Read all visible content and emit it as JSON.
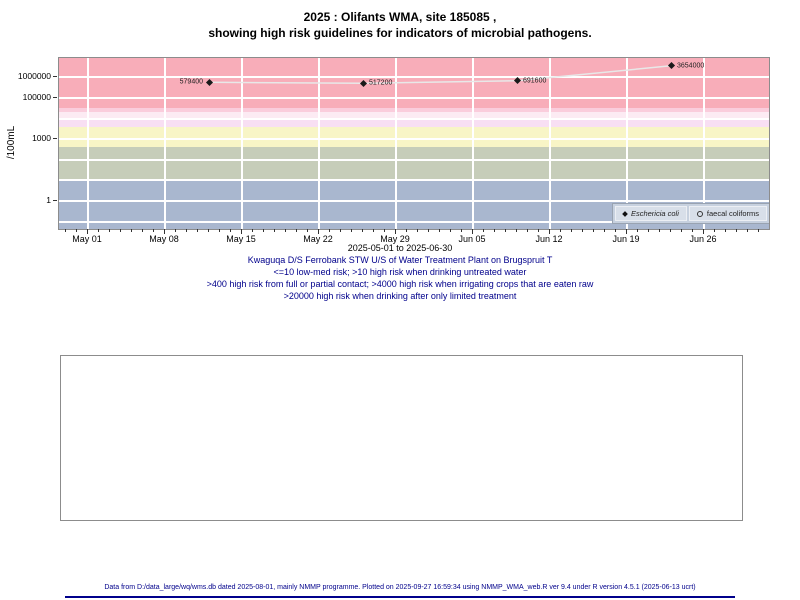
{
  "title": {
    "line1": "2025 : Olifants WMA, site 185085 ,",
    "line2": "showing high risk guidelines for indicators of microbial pathogens."
  },
  "chart_data": {
    "type": "line",
    "y_axis": {
      "label": "/100mL",
      "scale": "log",
      "ticks": [
        {
          "label": "1000000",
          "value": 1000000
        },
        {
          "label": "100000",
          "value": 100000
        },
        {
          "label": "1000",
          "value": 1000
        },
        {
          "label": "1",
          "value": 1
        }
      ]
    },
    "x_axis": {
      "start": "2025-05-01",
      "end": "2025-06-30",
      "ticks": [
        {
          "label": "May 01",
          "date": "2025-05-01"
        },
        {
          "label": "May 08",
          "date": "2025-05-08"
        },
        {
          "label": "May 15",
          "date": "2025-05-15"
        },
        {
          "label": "May 22",
          "date": "2025-05-22"
        },
        {
          "label": "May 29",
          "date": "2025-05-29"
        },
        {
          "label": "Jun 05",
          "date": "2025-06-05"
        },
        {
          "label": "Jun 12",
          "date": "2025-06-12"
        },
        {
          "label": "Jun 19",
          "date": "2025-06-19"
        },
        {
          "label": "Jun 26",
          "date": "2025-06-26"
        }
      ]
    },
    "gridline_decades": [
      0.1,
      1,
      10,
      100,
      1000,
      10000,
      100000,
      1000000
    ],
    "risk_bands": [
      {
        "name": "low-med-risk",
        "color": "#A9B7CF",
        "from": 0.04,
        "to": 10
      },
      {
        "name": "high-risk-drinking-untreated",
        "color": "#C6CDB9",
        "from": 10,
        "to": 400
      },
      {
        "name": "high-risk-contact",
        "color": "#F8F5C6",
        "from": 400,
        "to": 4000
      },
      {
        "name": "high-risk-irrigating",
        "color": "#F8DFF3",
        "from": 4000,
        "to": 10000
      },
      {
        "name": "band-pale-pink",
        "color": "#FCEBF3",
        "from": 10000,
        "to": 20000
      },
      {
        "name": "band-light-pink",
        "color": "#FACDDC",
        "from": 20000,
        "to": 33000
      },
      {
        "name": "high-risk-limited-treatment",
        "color": "#F8ADB9",
        "from": 33000,
        "to": 10800000
      }
    ],
    "series": [
      {
        "name": "Eschericia coli",
        "marker": "filled-diamond",
        "color": "#1a1a1a",
        "line_color": "#e8e8e8",
        "points": [
          {
            "date": "2025-05-12",
            "value": 579400,
            "label": "579400",
            "label_side": "left"
          },
          {
            "date": "2025-05-26",
            "value": 517200,
            "label": "517200",
            "label_side": "right"
          },
          {
            "date": "2025-06-09",
            "value": 691600,
            "label": "691600",
            "label_side": "right"
          },
          {
            "date": "2025-06-23",
            "value": 3654000,
            "label": "3654000",
            "label_side": "right"
          }
        ]
      },
      {
        "name": "faecal coliforms",
        "marker": "open-circle",
        "color": "#444444",
        "points": []
      }
    ]
  },
  "captions": {
    "range": "2025-05-01 to 2025-06-30",
    "site": "Kwaguqa D/S Ferrobank STW U/S of Water Treatment Plant on Brugspruit T",
    "guideline1": "<=10 low-med risk; >10 high risk when drinking untreated water",
    "guideline2": ">400 high risk from full or partial contact; >4000 high risk when irrigating crops that are eaten raw",
    "guideline3": ">20000 high risk when drinking after only limited treatment",
    "color": "#00008B"
  },
  "footer": {
    "text": "Data from D:/data_large/wq/wms.db dated 2025-08-01, mainly NMMP programme. Plotted on 2025-09-27 16:59:34 using NMMP_WMA_web.R ver 9.4 under R version 4.5.1 (2025-06-13 ucrt)",
    "color": "#00008B",
    "rule_color": "#00008B"
  }
}
